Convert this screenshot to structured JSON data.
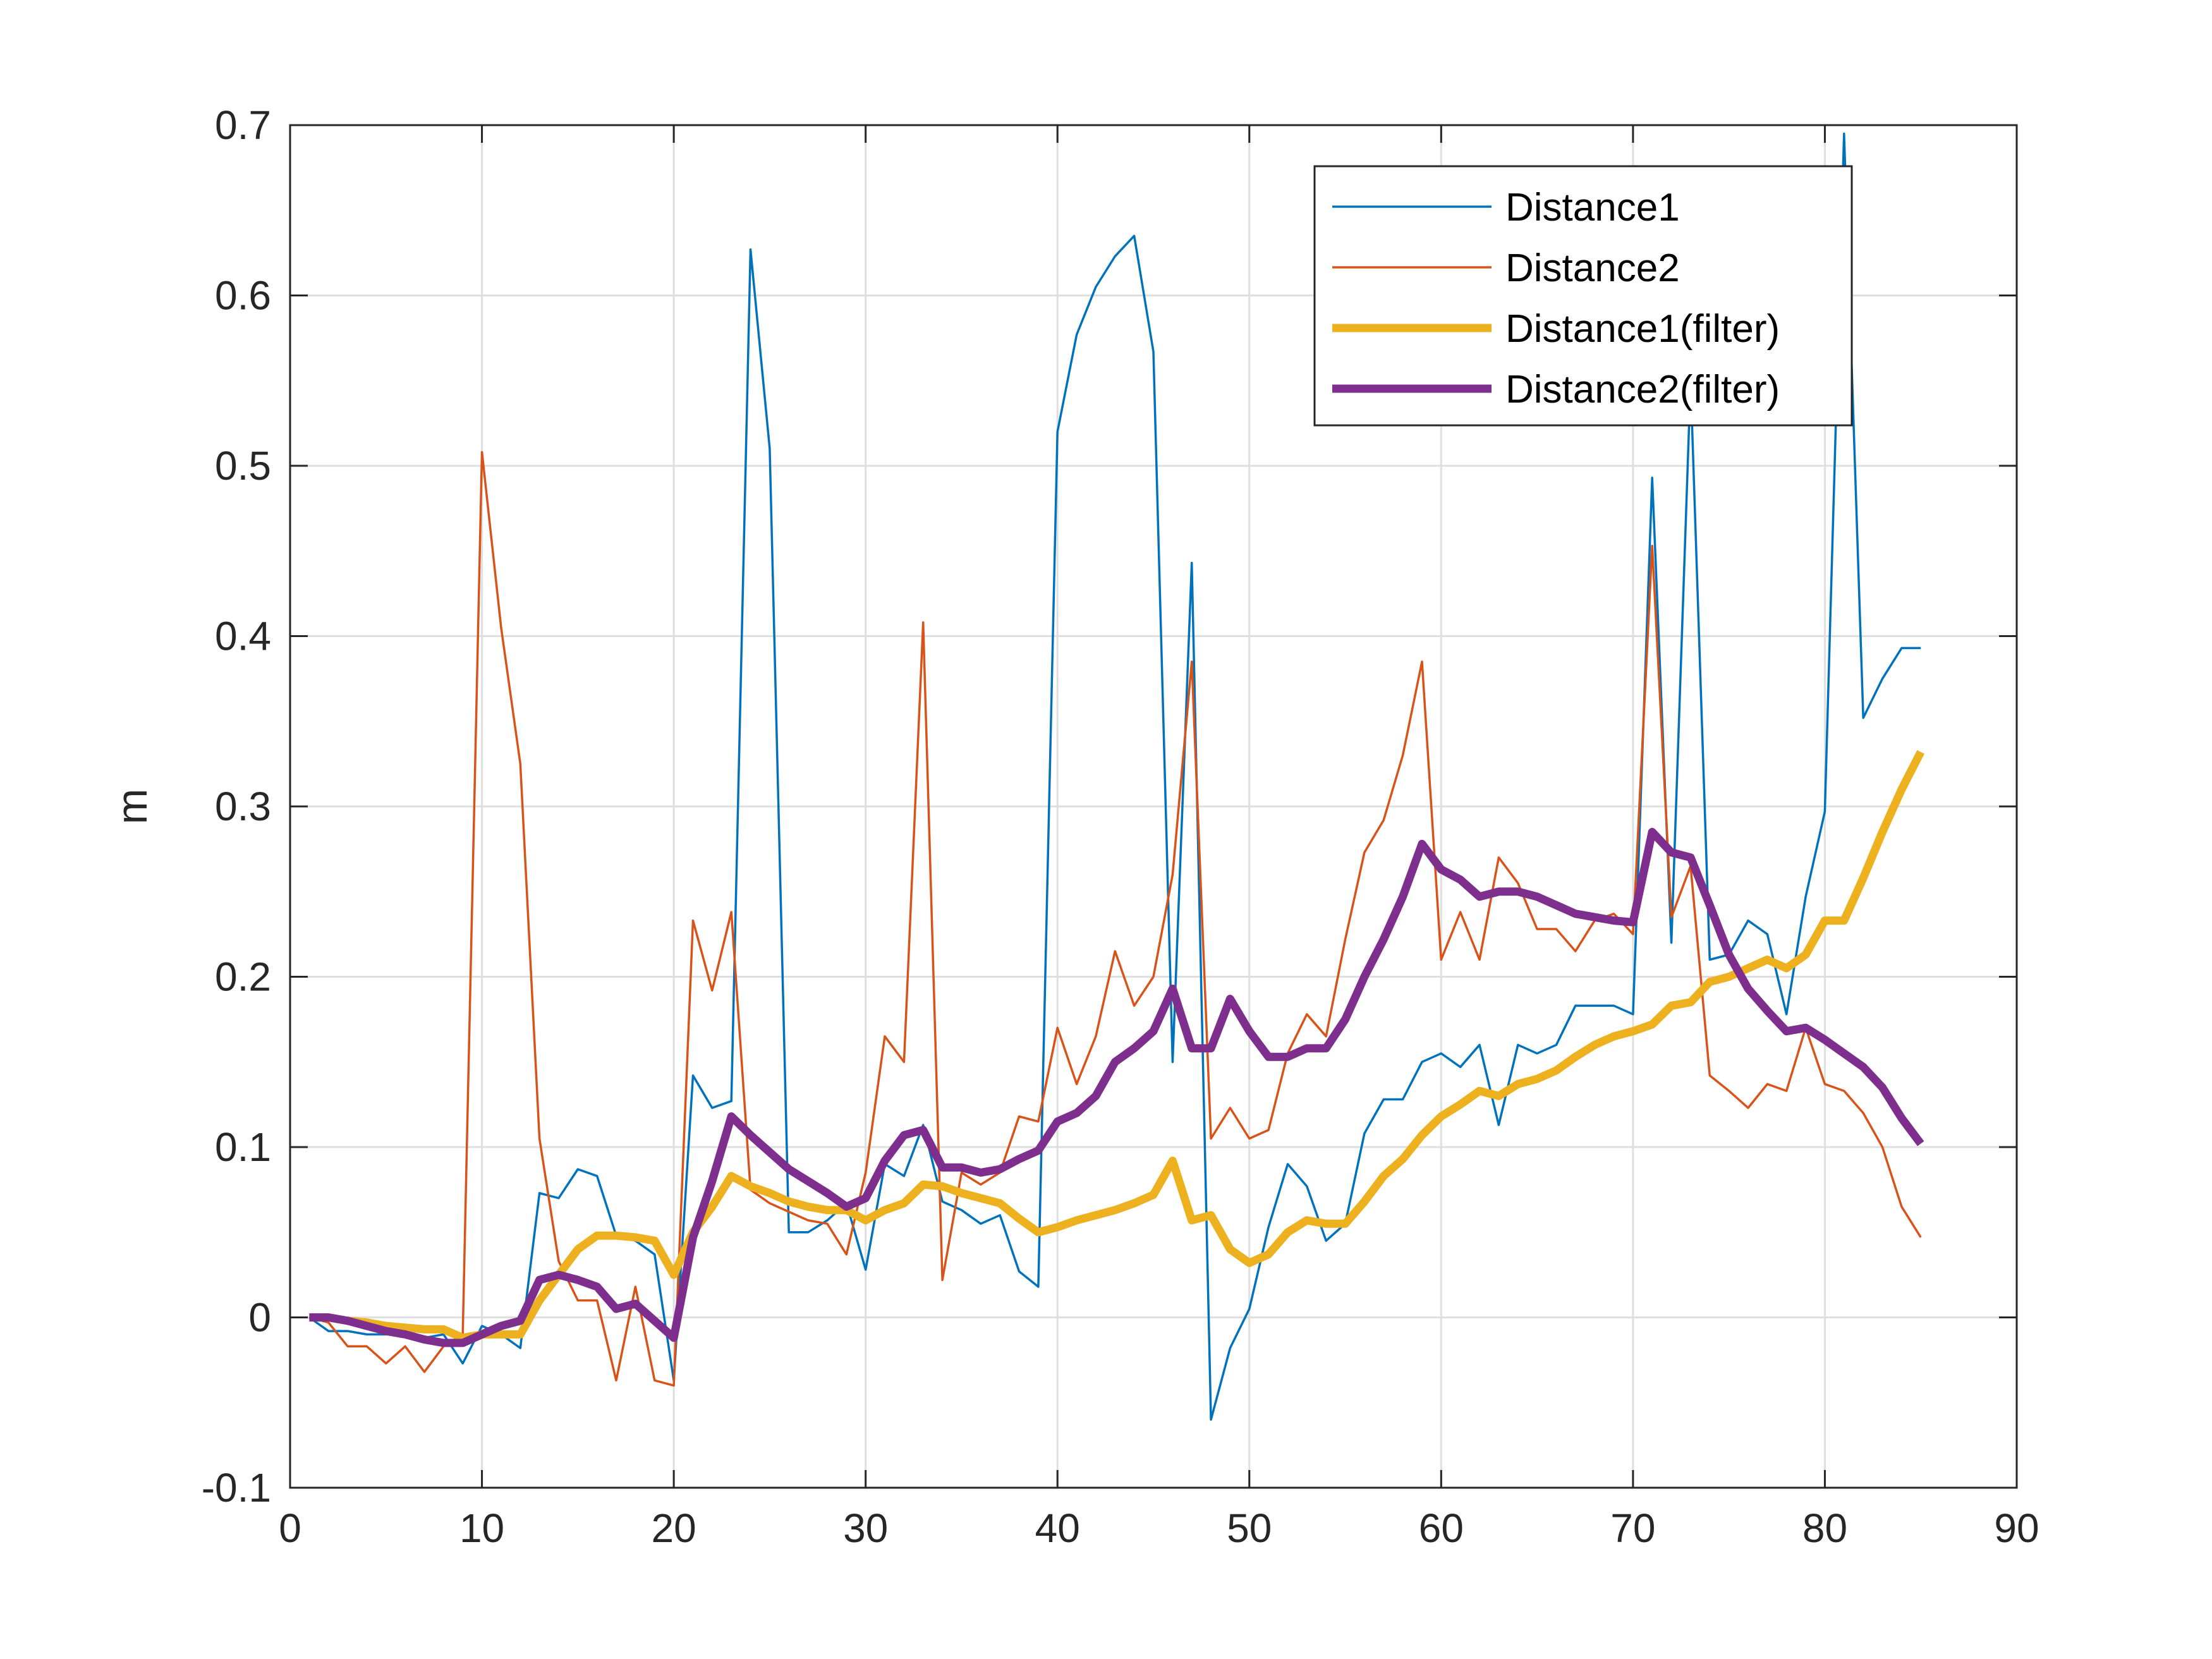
{
  "chart_data": {
    "type": "line",
    "title": "",
    "xlabel": "",
    "ylabel": "m",
    "xlim": [
      0,
      90
    ],
    "ylim": [
      -0.1,
      0.7
    ],
    "xticks": [
      0,
      10,
      20,
      30,
      40,
      50,
      60,
      70,
      80,
      90
    ],
    "yticks": [
      -0.1,
      0,
      0.1,
      0.2,
      0.3,
      0.4,
      0.5,
      0.6,
      0.7
    ],
    "xtick_labels": [
      "0",
      "10",
      "20",
      "30",
      "40",
      "50",
      "60",
      "70",
      "80",
      "90"
    ],
    "ytick_labels": [
      "-0.1",
      "0",
      "0.1",
      "0.2",
      "0.3",
      "0.4",
      "0.5",
      "0.6",
      "0.7"
    ],
    "grid": true,
    "legend_position": "top-right",
    "x": [
      1,
      2,
      3,
      4,
      5,
      6,
      7,
      8,
      9,
      10,
      11,
      12,
      13,
      14,
      15,
      16,
      17,
      18,
      19,
      20,
      21,
      22,
      23,
      24,
      25,
      26,
      27,
      28,
      29,
      30,
      31,
      32,
      33,
      34,
      35,
      36,
      37,
      38,
      39,
      40,
      41,
      42,
      43,
      44,
      45,
      46,
      47,
      48,
      49,
      50,
      51,
      52,
      53,
      54,
      55,
      56,
      57,
      58,
      59,
      60,
      61,
      62,
      63,
      64,
      65,
      66,
      67,
      68,
      69,
      70,
      71,
      72,
      73,
      74,
      75,
      76,
      77,
      78,
      79,
      80,
      81,
      82,
      83,
      84,
      85
    ],
    "series": [
      {
        "name": "Distance1",
        "color": "#0072BD",
        "width": 3.5,
        "values": [
          0,
          -0.008,
          -0.008,
          -0.01,
          -0.01,
          -0.01,
          -0.012,
          -0.01,
          -0.027,
          -0.005,
          -0.01,
          -0.018,
          0.073,
          0.07,
          0.087,
          0.083,
          0.048,
          0.045,
          0.037,
          -0.037,
          0.142,
          0.123,
          0.127,
          0.627,
          0.51,
          0.05,
          0.05,
          0.057,
          0.067,
          0.028,
          0.09,
          0.083,
          0.113,
          0.068,
          0.063,
          0.055,
          0.06,
          0.027,
          0.018,
          0.52,
          0.577,
          0.605,
          0.623,
          0.635,
          0.567,
          0.15,
          0.443,
          -0.06,
          -0.018,
          0.005,
          0.053,
          0.09,
          0.077,
          0.045,
          0.055,
          0.108,
          0.128,
          0.128,
          0.15,
          0.155,
          0.147,
          0.16,
          0.113,
          0.16,
          0.155,
          0.16,
          0.183,
          0.183,
          0.183,
          0.178,
          0.493,
          0.22,
          0.55,
          0.21,
          0.213,
          0.233,
          0.225,
          0.178,
          0.247,
          0.297,
          0.695,
          0.352,
          0.375,
          0.393,
          0.393
        ]
      },
      {
        "name": "Distance2",
        "color": "#D95319",
        "width": 3.5,
        "values": [
          0,
          -0.003,
          -0.017,
          -0.017,
          -0.027,
          -0.017,
          -0.032,
          -0.017,
          -0.01,
          0.508,
          0.405,
          0.325,
          0.105,
          0.033,
          0.01,
          0.01,
          -0.037,
          0.018,
          -0.037,
          -0.04,
          0.233,
          0.192,
          0.238,
          0.075,
          0.067,
          0.062,
          0.057,
          0.055,
          0.037,
          0.085,
          0.165,
          0.15,
          0.408,
          0.022,
          0.085,
          0.078,
          0.085,
          0.118,
          0.115,
          0.17,
          0.137,
          0.165,
          0.215,
          0.183,
          0.2,
          0.26,
          0.385,
          0.105,
          0.123,
          0.105,
          0.11,
          0.155,
          0.178,
          0.165,
          0.222,
          0.273,
          0.292,
          0.33,
          0.385,
          0.21,
          0.238,
          0.21,
          0.27,
          0.255,
          0.228,
          0.228,
          0.215,
          0.233,
          0.237,
          0.225,
          0.453,
          0.235,
          0.265,
          0.142,
          0.133,
          0.123,
          0.137,
          0.133,
          0.17,
          0.137,
          0.133,
          0.12,
          0.1,
          0.065,
          0.047
        ]
      },
      {
        "name": "Distance1(filter)",
        "color": "#EDB120",
        "width": 13,
        "values": [
          0,
          0,
          -0.002,
          -0.003,
          -0.005,
          -0.006,
          -0.007,
          -0.007,
          -0.012,
          -0.01,
          -0.01,
          -0.01,
          0.01,
          0.025,
          0.04,
          0.048,
          0.048,
          0.047,
          0.045,
          0.025,
          0.05,
          0.065,
          0.083,
          0.077,
          0.073,
          0.068,
          0.065,
          0.063,
          0.063,
          0.057,
          0.063,
          0.067,
          0.078,
          0.077,
          0.073,
          0.07,
          0.067,
          0.058,
          0.05,
          0.053,
          0.057,
          0.06,
          0.063,
          0.067,
          0.072,
          0.092,
          0.057,
          0.06,
          0.04,
          0.032,
          0.037,
          0.05,
          0.057,
          0.055,
          0.055,
          0.068,
          0.083,
          0.093,
          0.107,
          0.118,
          0.125,
          0.133,
          0.13,
          0.137,
          0.14,
          0.145,
          0.153,
          0.16,
          0.165,
          0.168,
          0.172,
          0.183,
          0.185,
          0.197,
          0.2,
          0.205,
          0.21,
          0.205,
          0.213,
          0.233,
          0.233,
          0.258,
          0.285,
          0.31,
          0.332
        ]
      },
      {
        "name": "Distance2(filter)",
        "color": "#7E2F8E",
        "width": 13,
        "values": [
          0,
          0,
          -0.002,
          -0.005,
          -0.008,
          -0.01,
          -0.013,
          -0.015,
          -0.015,
          -0.01,
          -0.005,
          -0.002,
          0.022,
          0.025,
          0.022,
          0.018,
          0.005,
          0.008,
          -0.002,
          -0.012,
          0.047,
          0.08,
          0.118,
          0.107,
          0.097,
          0.087,
          0.08,
          0.073,
          0.065,
          0.07,
          0.092,
          0.107,
          0.11,
          0.088,
          0.088,
          0.085,
          0.087,
          0.093,
          0.098,
          0.115,
          0.12,
          0.13,
          0.15,
          0.158,
          0.168,
          0.193,
          0.158,
          0.158,
          0.187,
          0.168,
          0.153,
          0.153,
          0.158,
          0.158,
          0.175,
          0.2,
          0.222,
          0.247,
          0.278,
          0.263,
          0.257,
          0.247,
          0.25,
          0.25,
          0.247,
          0.242,
          0.237,
          0.235,
          0.233,
          0.232,
          0.285,
          0.273,
          0.27,
          0.242,
          0.213,
          0.193,
          0.18,
          0.168,
          0.17,
          0.163,
          0.155,
          0.147,
          0.135,
          0.117,
          0.102
        ]
      }
    ]
  }
}
